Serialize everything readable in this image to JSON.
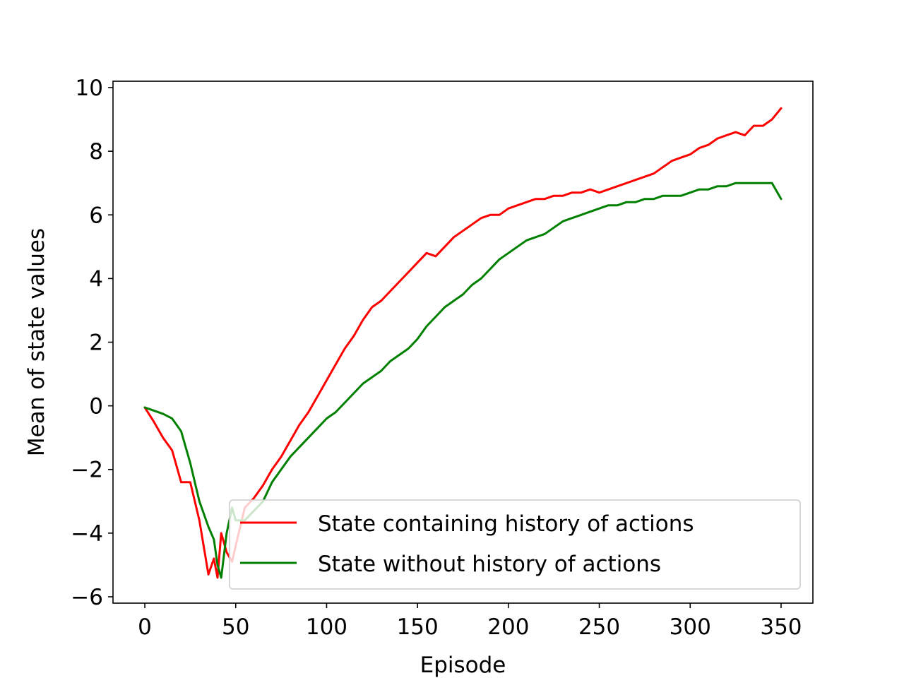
{
  "chart_data": {
    "type": "line",
    "xlabel": "Episode",
    "ylabel": "Mean of state values",
    "xlim": [
      -17.5,
      367.5
    ],
    "ylim": [
      -6.2,
      10.2
    ],
    "xticks": [
      0,
      50,
      100,
      150,
      200,
      250,
      300,
      350
    ],
    "yticks": [
      -6,
      -4,
      -2,
      0,
      2,
      4,
      6,
      8,
      10
    ],
    "grid": false,
    "legend_position": "lower-right",
    "series": [
      {
        "name": "State containing history of actions",
        "color": "#ff0000",
        "x": [
          0,
          5,
          10,
          15,
          20,
          25,
          30,
          35,
          38,
          40,
          42,
          45,
          48,
          50,
          55,
          60,
          65,
          70,
          75,
          80,
          85,
          90,
          95,
          100,
          105,
          110,
          115,
          120,
          125,
          130,
          135,
          140,
          145,
          150,
          155,
          160,
          165,
          170,
          175,
          180,
          185,
          190,
          195,
          200,
          205,
          210,
          215,
          220,
          225,
          230,
          235,
          240,
          245,
          250,
          255,
          260,
          265,
          270,
          275,
          280,
          285,
          290,
          295,
          300,
          305,
          310,
          315,
          320,
          325,
          330,
          335,
          340,
          345,
          350
        ],
        "y": [
          -0.05,
          -0.5,
          -1.0,
          -1.4,
          -2.4,
          -2.4,
          -3.6,
          -5.3,
          -4.8,
          -5.4,
          -4.0,
          -4.6,
          -4.9,
          -4.4,
          -3.2,
          -2.9,
          -2.5,
          -2.0,
          -1.6,
          -1.1,
          -0.6,
          -0.2,
          0.3,
          0.8,
          1.3,
          1.8,
          2.2,
          2.7,
          3.1,
          3.3,
          3.6,
          3.9,
          4.2,
          4.5,
          4.8,
          4.7,
          5.0,
          5.3,
          5.5,
          5.7,
          5.9,
          6.0,
          6.0,
          6.2,
          6.3,
          6.4,
          6.5,
          6.5,
          6.6,
          6.6,
          6.7,
          6.7,
          6.8,
          6.7,
          6.8,
          6.9,
          7.0,
          7.1,
          7.2,
          7.3,
          7.5,
          7.7,
          7.8,
          7.9,
          8.1,
          8.2,
          8.4,
          8.5,
          8.6,
          8.5,
          8.8,
          8.8,
          9.0,
          9.35
        ]
      },
      {
        "name": "State without history of actions",
        "color": "#008000",
        "x": [
          0,
          5,
          10,
          15,
          20,
          25,
          30,
          35,
          38,
          40,
          42,
          45,
          48,
          50,
          55,
          60,
          65,
          70,
          75,
          80,
          85,
          90,
          95,
          100,
          105,
          110,
          115,
          120,
          125,
          130,
          135,
          140,
          145,
          150,
          155,
          160,
          165,
          170,
          175,
          180,
          185,
          190,
          195,
          200,
          205,
          210,
          215,
          220,
          225,
          230,
          235,
          240,
          245,
          250,
          255,
          260,
          265,
          270,
          275,
          280,
          285,
          290,
          295,
          300,
          305,
          310,
          315,
          320,
          325,
          330,
          335,
          340,
          345,
          350
        ],
        "y": [
          -0.05,
          -0.15,
          -0.25,
          -0.4,
          -0.8,
          -1.8,
          -3.0,
          -3.8,
          -4.2,
          -5.0,
          -5.4,
          -4.0,
          -3.2,
          -3.6,
          -3.6,
          -3.3,
          -3.0,
          -2.4,
          -2.0,
          -1.6,
          -1.3,
          -1.0,
          -0.7,
          -0.4,
          -0.2,
          0.1,
          0.4,
          0.7,
          0.9,
          1.1,
          1.4,
          1.6,
          1.8,
          2.1,
          2.5,
          2.8,
          3.1,
          3.3,
          3.5,
          3.8,
          4.0,
          4.3,
          4.6,
          4.8,
          5.0,
          5.2,
          5.3,
          5.4,
          5.6,
          5.8,
          5.9,
          6.0,
          6.1,
          6.2,
          6.3,
          6.3,
          6.4,
          6.4,
          6.5,
          6.5,
          6.6,
          6.6,
          6.6,
          6.7,
          6.8,
          6.8,
          6.9,
          6.9,
          7.0,
          7.0,
          7.0,
          7.0,
          7.0,
          6.5
        ]
      }
    ]
  }
}
